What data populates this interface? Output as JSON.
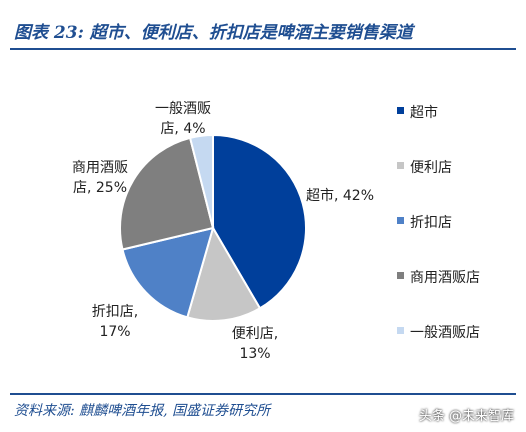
{
  "header": {
    "title": "图表 23: 超市、便利店、折扣店是啤酒主要销售渠道"
  },
  "footer": {
    "source": "资料来源: 麒麟啤酒年报, 国盛证券研究所",
    "watermark": "头条 @未来智库"
  },
  "colors": {
    "accent": "#1f4e91"
  },
  "chart_data": {
    "type": "pie",
    "title": "",
    "legend_position": "right",
    "slices": [
      {
        "name": "超市",
        "value": 42,
        "color": "#003f9b",
        "label_lines": [
          "超市, 42%"
        ]
      },
      {
        "name": "便利店",
        "value": 13,
        "color": "#c6c6c6",
        "label_lines": [
          "便利店,",
          "13%"
        ]
      },
      {
        "name": "折扣店",
        "value": 17,
        "color": "#4f81c7",
        "label_lines": [
          "折扣店,",
          "17%"
        ]
      },
      {
        "name": "商用酒贩店",
        "value": 25,
        "color": "#7f7f7f",
        "label_lines": [
          "商用酒贩",
          "店, 25%"
        ]
      },
      {
        "name": "一般酒贩店",
        "value": 4,
        "color": "#c5d9f1",
        "label_lines": [
          "一般酒贩",
          "店, 4%"
        ]
      }
    ]
  }
}
